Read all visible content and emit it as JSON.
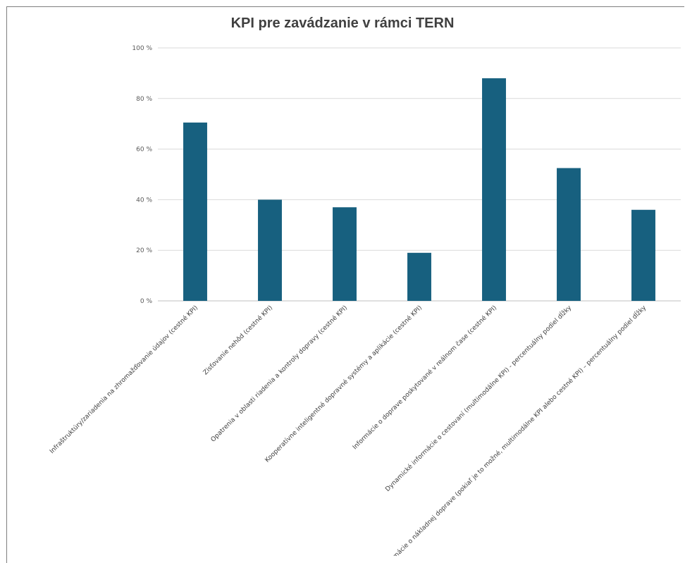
{
  "chart_data": {
    "type": "bar",
    "title": "KPI pre zavádzanie v rámci TERN",
    "xlabel": "",
    "ylabel": "",
    "ylim": [
      0,
      100
    ],
    "yticks": [
      0,
      20,
      40,
      60,
      80,
      100
    ],
    "ytick_labels": [
      "0 %",
      "20 %",
      "40 %",
      "60 %",
      "80 %",
      "100 %"
    ],
    "grid": true,
    "legend": "none",
    "categories": [
      "Infraštruktúry/zariadenia na zhromažďovanie údajov (cestné KPI)",
      "Zisťovanie nehôd (cestné KPI)",
      "Opatrenia v oblasti riadenia a kontroly dopravy (cestné KPI)",
      "Kooperatívne inteligentné dopravné systémy a aplikácie (cestné KPI)",
      "Informácie o doprave poskytované v reálnom čase (cestné KPI)",
      "Dynamické informácie o cestovaní (multimodálne KPI) - percentuálny podiel dĺžky",
      "Informácie o nákladnej doprave (pokiaľ je to možné, multimodálne KPI alebo cestné KPI) – percentuálny podiel dĺžky"
    ],
    "values": [
      70.5,
      40,
      37,
      19,
      88,
      52.5,
      36
    ],
    "colors": {
      "bar": "#17607f",
      "grid": "#d9d9d9",
      "axis": "#bfbfbf"
    }
  }
}
